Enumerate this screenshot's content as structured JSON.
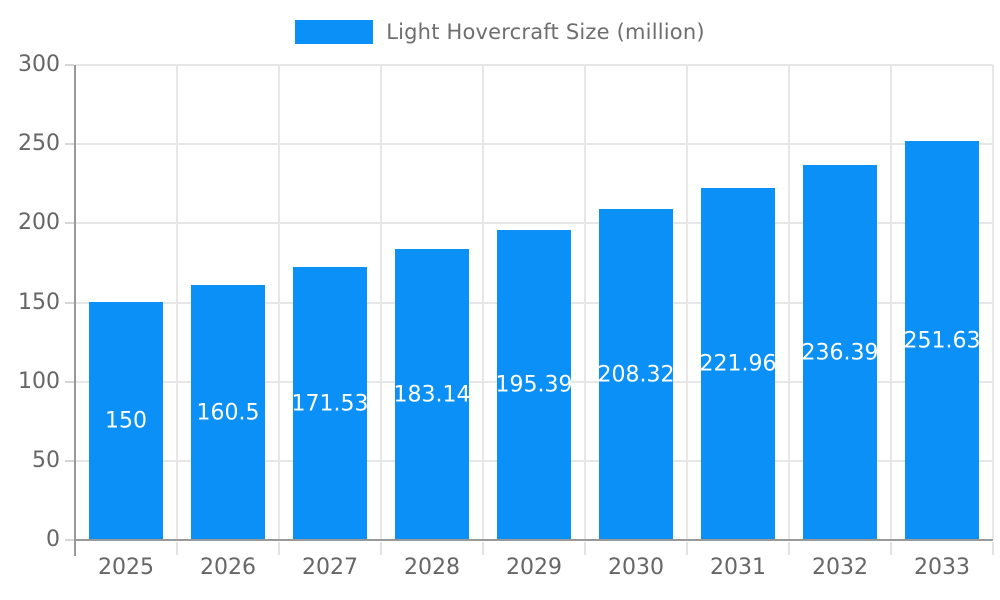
{
  "chart_data": {
    "type": "bar",
    "title": "",
    "legend": "Light Hovercraft Size (million)",
    "legend_position": "top",
    "categories": [
      "2025",
      "2026",
      "2027",
      "2028",
      "2029",
      "2030",
      "2031",
      "2032",
      "2033"
    ],
    "series": [
      {
        "name": "Light Hovercraft Size (million)",
        "values": [
          150,
          160.5,
          171.53,
          183.14,
          195.39,
          208.32,
          221.96,
          236.39,
          251.63
        ]
      }
    ],
    "value_labels": [
      "150",
      "160.5",
      "171.53",
      "183.14",
      "195.39",
      "208.32",
      "221.96",
      "236.39",
      "251.63"
    ],
    "xlabel": "",
    "ylabel": "",
    "ylim": [
      0,
      300
    ],
    "yticks": [
      0,
      50,
      100,
      150,
      200,
      250,
      300
    ],
    "grid": true,
    "colors": {
      "bar": "#0a90f7",
      "bar_label_text": "#ffffff",
      "axis_text": "#666666",
      "gridline": "#e7e7e7",
      "axis_line": "#999999",
      "background": "#ffffff"
    }
  }
}
